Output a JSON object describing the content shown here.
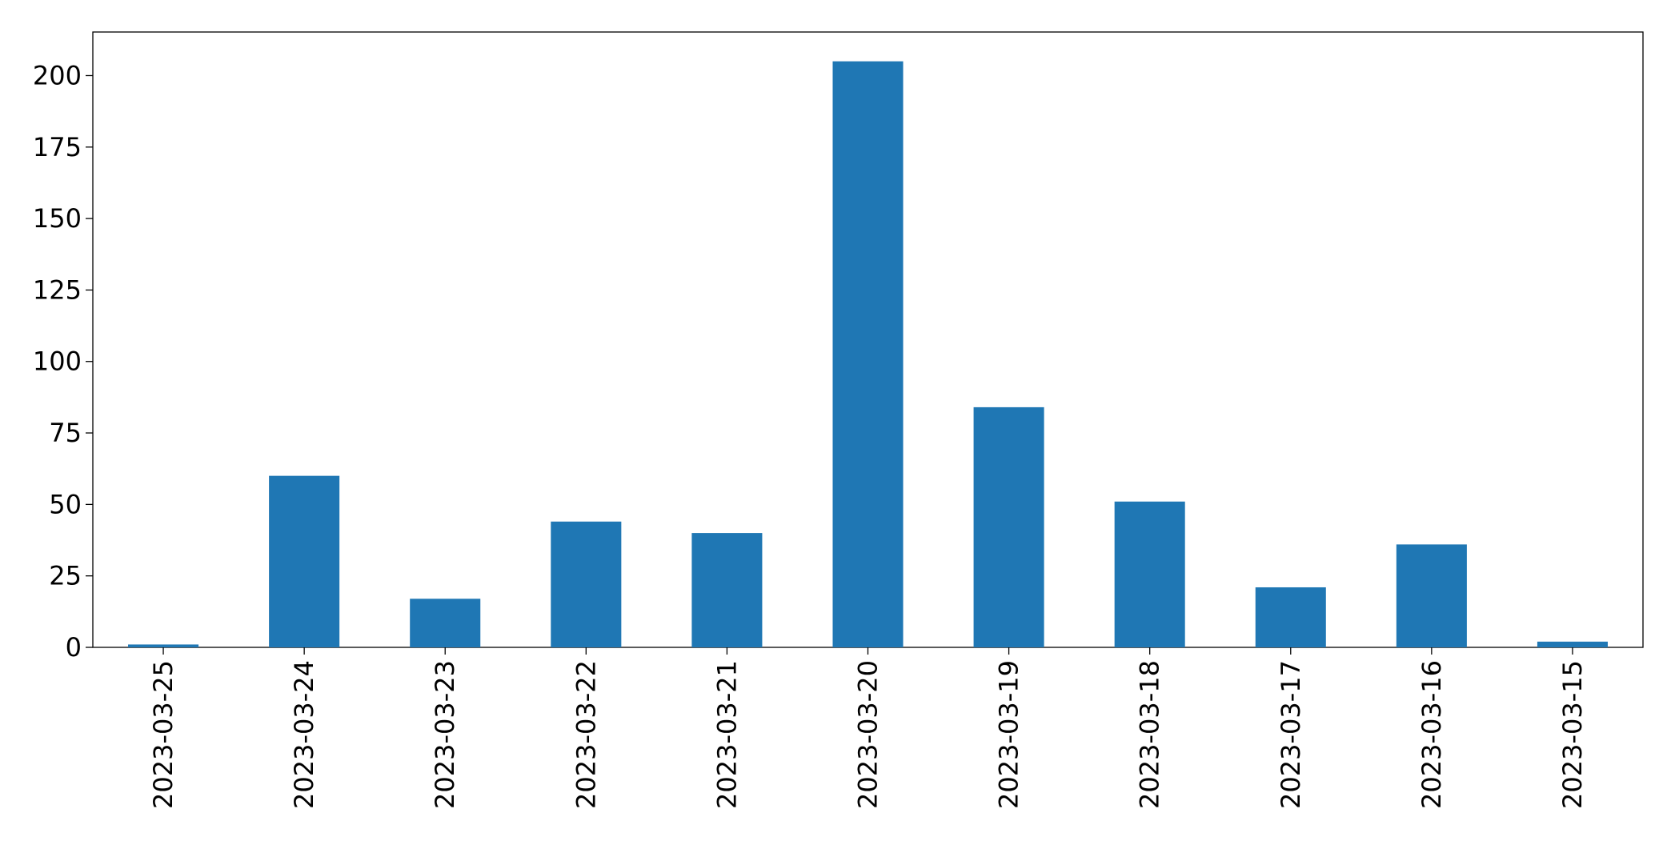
{
  "chart_data": {
    "type": "bar",
    "categories": [
      "2023-03-25",
      "2023-03-24",
      "2023-03-23",
      "2023-03-22",
      "2023-03-21",
      "2023-03-20",
      "2023-03-19",
      "2023-03-18",
      "2023-03-17",
      "2023-03-16",
      "2023-03-15"
    ],
    "values": [
      1,
      60,
      17,
      44,
      40,
      205,
      84,
      51,
      21,
      36,
      2
    ],
    "color": "#1f77b4",
    "ylim": [
      0,
      215.25
    ],
    "yticks": [
      0,
      25,
      50,
      75,
      100,
      125,
      150,
      175,
      200
    ],
    "grid": false
  }
}
